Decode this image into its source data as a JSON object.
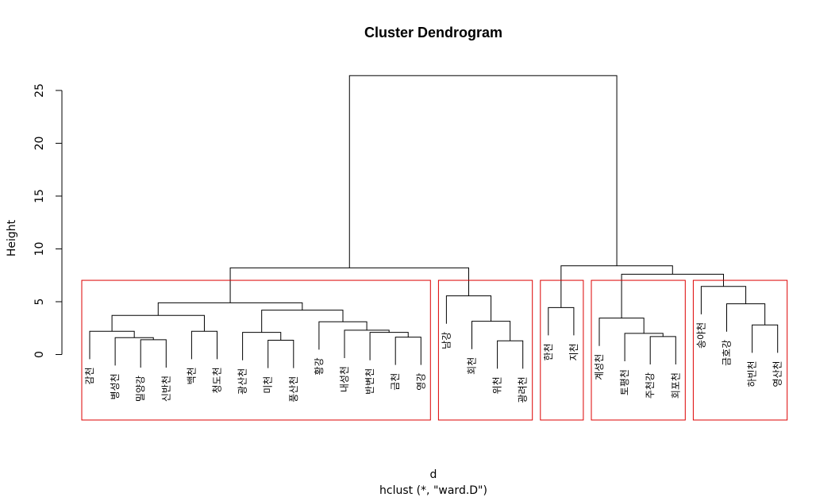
{
  "chart_data": {
    "type": "dendrogram",
    "title": "Cluster Dendrogram",
    "ylabel": "Height",
    "xlabel": "d",
    "subtitle": "hclust (*, \"ward.D\")",
    "labels": [
      "감천",
      "병성천",
      "밀양강",
      "신반천",
      "백천",
      "청도천",
      "광산천",
      "미천",
      "풍산천",
      "황강",
      "내성천",
      "반변천",
      "금천",
      "영강",
      "남강",
      "회천",
      "위천",
      "광려천",
      "한천",
      "지천",
      "계성천",
      "토평천",
      "주천강",
      "회포천",
      "송야천",
      "금호강",
      "하빈천",
      "영산천"
    ],
    "merge": [
      [
        -3,
        -4
      ],
      [
        -2,
        1
      ],
      [
        -1,
        2
      ],
      [
        -5,
        -6
      ],
      [
        3,
        4
      ],
      [
        -8,
        -9
      ],
      [
        -7,
        6
      ],
      [
        -13,
        -14
      ],
      [
        -12,
        8
      ],
      [
        -11,
        9
      ],
      [
        -10,
        10
      ],
      [
        7,
        11
      ],
      [
        5,
        12
      ],
      [
        -17,
        -18
      ],
      [
        -16,
        14
      ],
      [
        -15,
        15
      ],
      [
        13,
        16
      ],
      [
        -19,
        -20
      ],
      [
        -23,
        -24
      ],
      [
        -22,
        19
      ],
      [
        -21,
        20
      ],
      [
        -27,
        -28
      ],
      [
        -26,
        22
      ],
      [
        -25,
        23
      ],
      [
        21,
        24
      ],
      [
        18,
        25
      ],
      [
        17,
        26
      ]
    ],
    "height": [
      1.4,
      1.6,
      2.2,
      2.2,
      3.7,
      1.35,
      2.1,
      1.65,
      2.1,
      2.3,
      3.1,
      4.2,
      4.9,
      1.3,
      3.15,
      5.55,
      8.2,
      4.45,
      1.7,
      2.0,
      3.45,
      2.8,
      4.8,
      6.45,
      7.6,
      8.4,
      26.4
    ],
    "ylim": [
      -6.2,
      27.7
    ],
    "yticks": [
      0,
      5,
      10,
      15,
      20,
      25
    ],
    "k": 5,
    "color": "#000000",
    "rect_color": "#dd0000"
  }
}
